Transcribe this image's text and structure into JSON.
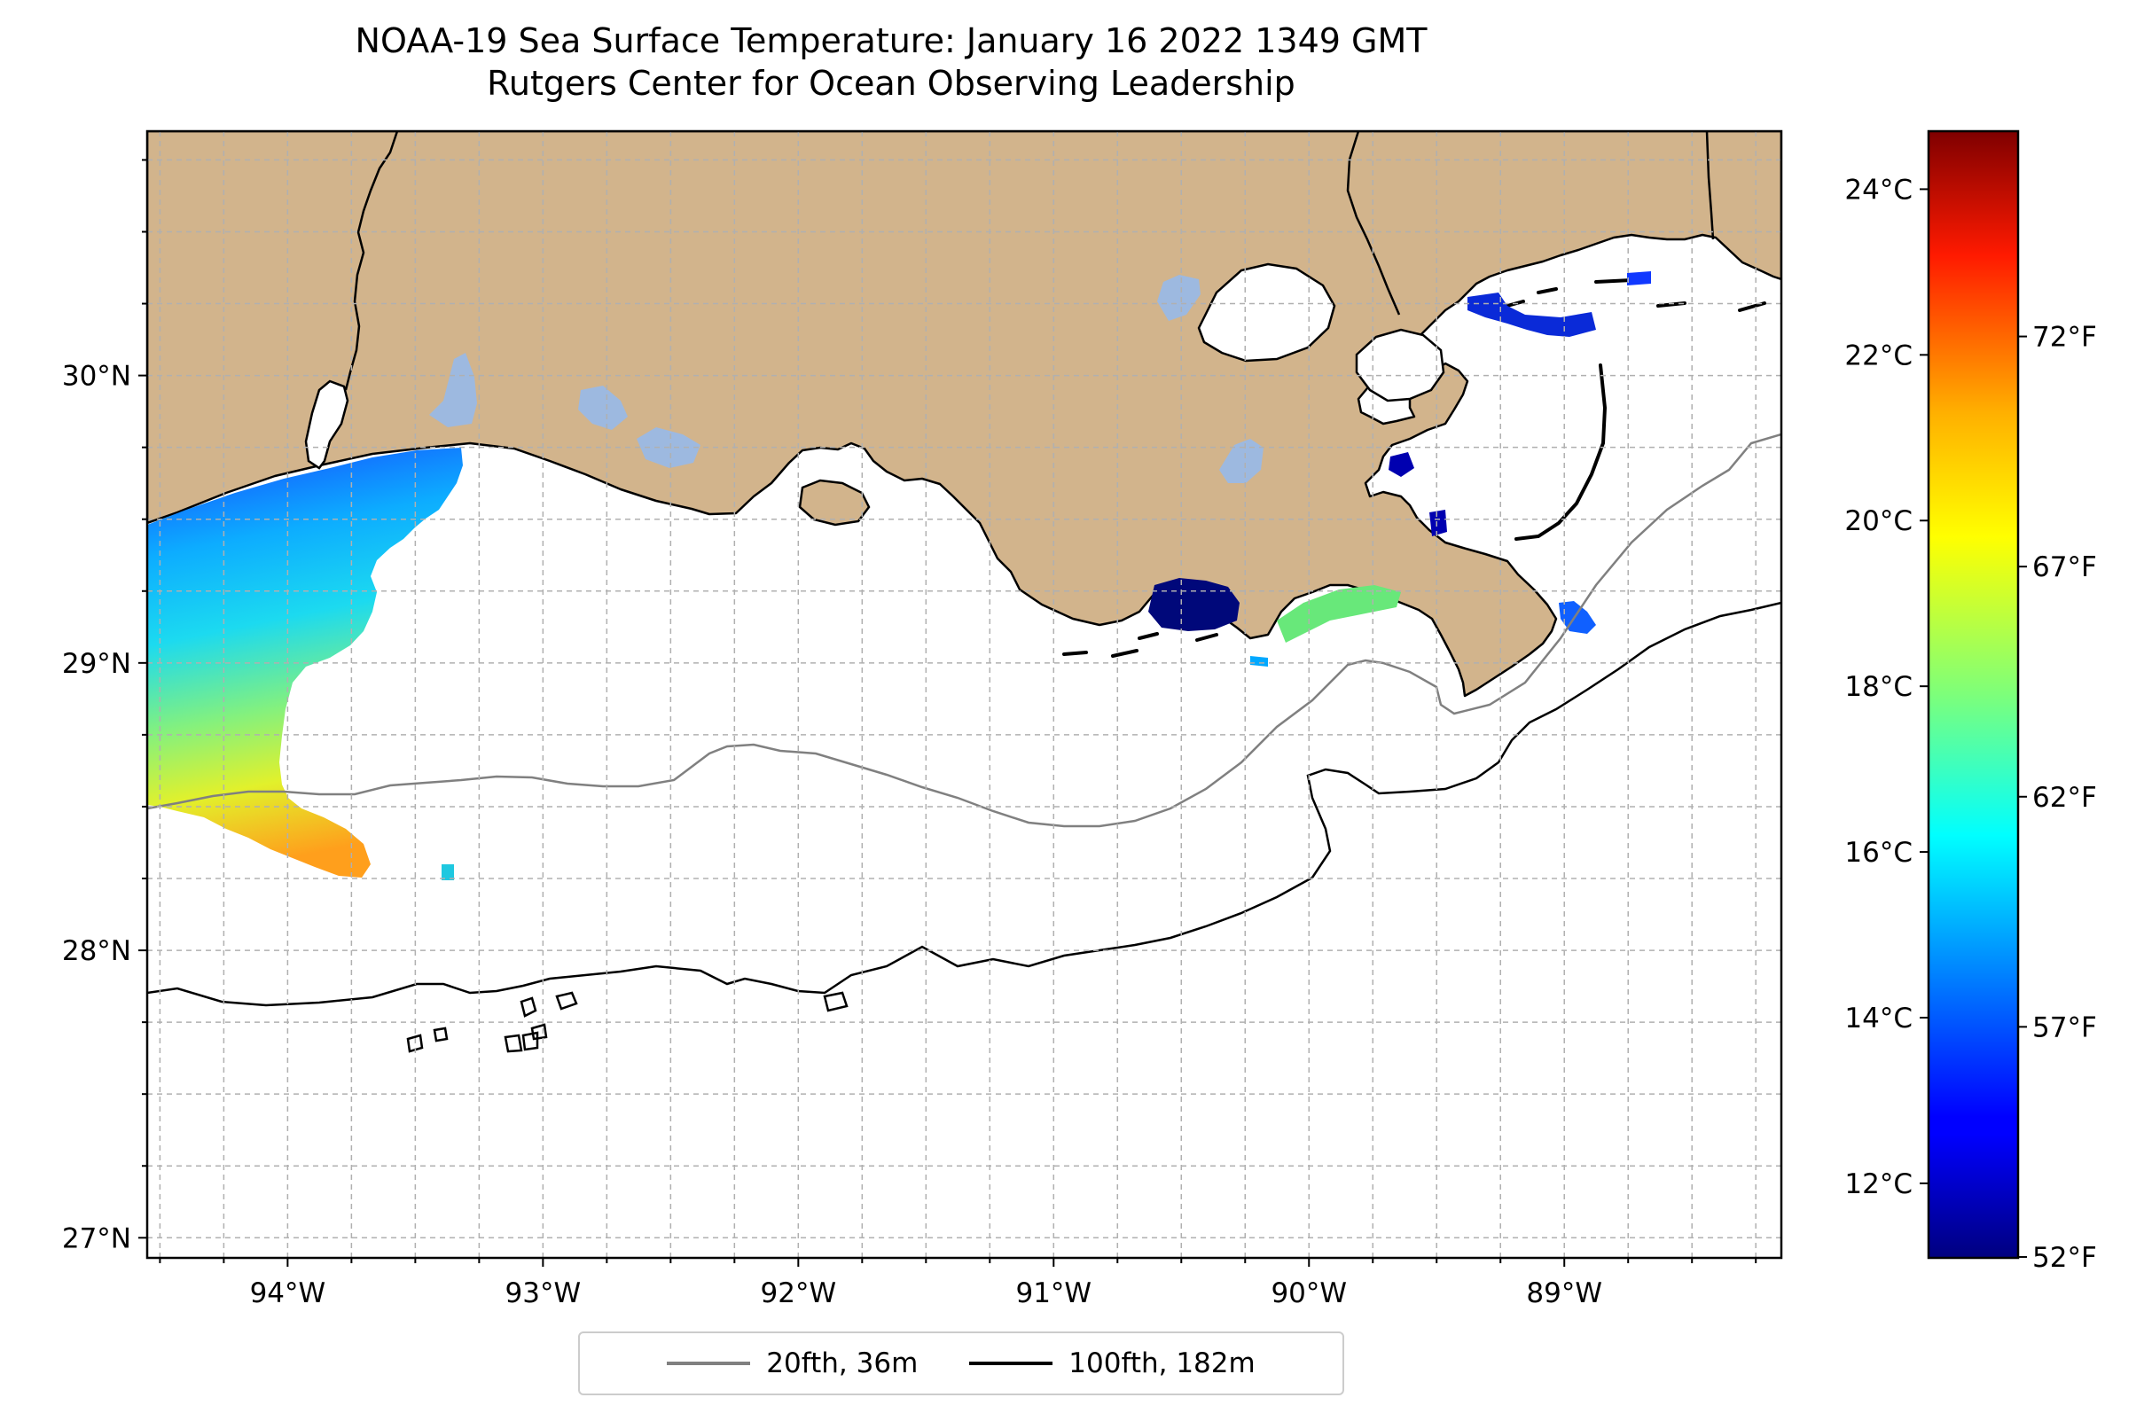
{
  "title": {
    "line1": "NOAA-19 Sea Surface Temperature: January 16 2022 1349 GMT",
    "line2": "Rutgers Center for Ocean Observing Leadership"
  },
  "map": {
    "lon_range": [
      -94.55,
      -88.15
    ],
    "lat_range": [
      26.93,
      30.85
    ],
    "lon_ticks": [
      {
        "value": -94,
        "label": "94°W"
      },
      {
        "value": -93,
        "label": "93°W"
      },
      {
        "value": -92,
        "label": "92°W"
      },
      {
        "value": -91,
        "label": "91°W"
      },
      {
        "value": -90,
        "label": "90°W"
      },
      {
        "value": -89,
        "label": "89°W"
      }
    ],
    "lat_ticks": [
      {
        "value": 27,
        "label": "27°N"
      },
      {
        "value": 28,
        "label": "28°N"
      },
      {
        "value": 29,
        "label": "29°N"
      },
      {
        "value": 30,
        "label": "30°N"
      }
    ],
    "grid": true,
    "colors": {
      "land": "#d2b48c",
      "water_body": "#9db9e0",
      "coast": "#000000",
      "grid": "#b0b0b0"
    }
  },
  "colorbar": {
    "colormap": "jet",
    "celsius_range": [
      11.1,
      24.7
    ],
    "celsius_ticks": [
      {
        "value": 12,
        "label": "12°C"
      },
      {
        "value": 14,
        "label": "14°C"
      },
      {
        "value": 16,
        "label": "16°C"
      },
      {
        "value": 18,
        "label": "18°C"
      },
      {
        "value": 20,
        "label": "20°C"
      },
      {
        "value": 22,
        "label": "22°C"
      },
      {
        "value": 24,
        "label": "24°C"
      }
    ],
    "fahrenheit_ticks": [
      {
        "value": 52,
        "label": "52°F"
      },
      {
        "value": 57,
        "label": "57°F"
      },
      {
        "value": 62,
        "label": "62°F"
      },
      {
        "value": 67,
        "label": "67°F"
      },
      {
        "value": 72,
        "label": "72°F"
      }
    ]
  },
  "legend": {
    "placement": "bottom-center",
    "items": [
      {
        "label": "20fth, 36m",
        "color": "#808080"
      },
      {
        "label": "100fth, 182m",
        "color": "#000000"
      }
    ]
  }
}
